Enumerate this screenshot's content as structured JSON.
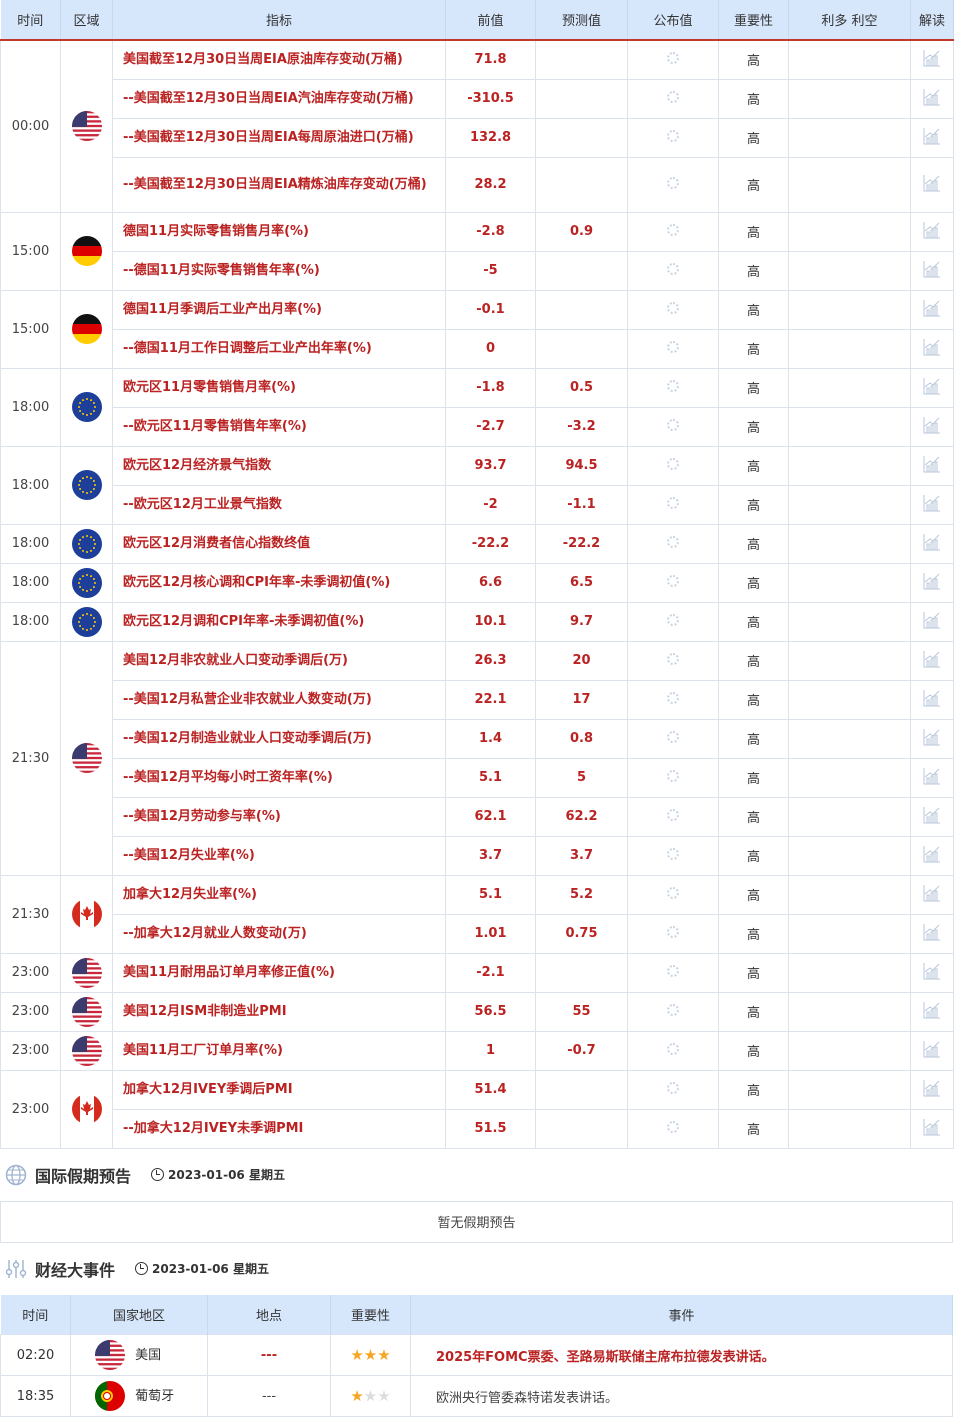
{
  "headers": [
    "时间",
    "区域",
    "指标",
    "前值",
    "预测值",
    "公布值",
    "重要性",
    "利多 利空",
    "解读"
  ],
  "groups": [
    {
      "time": "00:00",
      "flag": "us",
      "rows": [
        [
          "美国截至12月30日当周EIA原油库存变动(万桶)",
          "71.8",
          ""
        ],
        [
          "--美国截至12月30日当周EIA汽油库存变动(万桶)",
          "-310.5",
          ""
        ],
        [
          "--美国截至12月30日当周EIA每周原油进口(万桶)",
          "132.8",
          ""
        ],
        [
          "--美国截至12月30日当周EIA精炼油库存变动(万桶)",
          "28.2",
          ""
        ]
      ]
    },
    {
      "time": "15:00",
      "flag": "de",
      "rows": [
        [
          "德国11月实际零售销售月率(%)",
          "-2.8",
          "0.9"
        ],
        [
          "--德国11月实际零售销售年率(%)",
          "-5",
          ""
        ]
      ]
    },
    {
      "time": "15:00",
      "flag": "de",
      "rows": [
        [
          "德国11月季调后工业产出月率(%)",
          "-0.1",
          ""
        ],
        [
          "--德国11月工作日调整后工业产出年率(%)",
          "0",
          ""
        ]
      ]
    },
    {
      "time": "18:00",
      "flag": "eu",
      "rows": [
        [
          "欧元区11月零售销售月率(%)",
          "-1.8",
          "0.5"
        ],
        [
          "--欧元区11月零售销售年率(%)",
          "-2.7",
          "-3.2"
        ]
      ]
    },
    {
      "time": "18:00",
      "flag": "eu",
      "rows": [
        [
          "欧元区12月经济景气指数",
          "93.7",
          "94.5"
        ],
        [
          "--欧元区12月工业景气指数",
          "-2",
          "-1.1"
        ]
      ]
    },
    {
      "time": "18:00",
      "flag": "eu",
      "rows": [
        [
          "欧元区12月消费者信心指数终值",
          "-22.2",
          "-22.2"
        ]
      ]
    },
    {
      "time": "18:00",
      "flag": "eu",
      "rows": [
        [
          "欧元区12月核心调和CPI年率-未季调初值(%)",
          "6.6",
          "6.5"
        ]
      ]
    },
    {
      "time": "18:00",
      "flag": "eu",
      "rows": [
        [
          "欧元区12月调和CPI年率-未季调初值(%)",
          "10.1",
          "9.7"
        ]
      ]
    },
    {
      "time": "21:30",
      "flag": "us",
      "rows": [
        [
          "美国12月非农就业人口变动季调后(万)",
          "26.3",
          "20"
        ],
        [
          "--美国12月私营企业非农就业人数变动(万)",
          "22.1",
          "17"
        ],
        [
          "--美国12月制造业就业人口变动季调后(万)",
          "1.4",
          "0.8"
        ],
        [
          "--美国12月平均每小时工资年率(%)",
          "5.1",
          "5"
        ],
        [
          "--美国12月劳动参与率(%)",
          "62.1",
          "62.2"
        ],
        [
          "--美国12月失业率(%)",
          "3.7",
          "3.7"
        ]
      ]
    },
    {
      "time": "21:30",
      "flag": "ca",
      "rows": [
        [
          "加拿大12月失业率(%)",
          "5.1",
          "5.2"
        ],
        [
          "--加拿大12月就业人数变动(万)",
          "1.01",
          "0.75"
        ]
      ]
    },
    {
      "time": "23:00",
      "flag": "us",
      "rows": [
        [
          "美国11月耐用品订单月率修正值(%)",
          "-2.1",
          ""
        ]
      ]
    },
    {
      "time": "23:00",
      "flag": "us",
      "rows": [
        [
          "美国12月ISM非制造业PMI",
          "56.5",
          "55"
        ]
      ]
    },
    {
      "time": "23:00",
      "flag": "us",
      "rows": [
        [
          "美国11月工厂订单月率(%)",
          "1",
          "-0.7"
        ]
      ]
    },
    {
      "time": "23:00",
      "flag": "ca",
      "rows": [
        [
          "加拿大12月IVEY季调后PMI",
          "51.4",
          ""
        ],
        [
          "--加拿大12月IVEY未季调PMI",
          "51.5",
          ""
        ]
      ]
    }
  ],
  "importance": "高",
  "holiday": {
    "title": "国际假期预告",
    "date": "2023-01-06 星期五",
    "empty": "暂无假期预告"
  },
  "events": {
    "title": "财经大事件",
    "date": "2023-01-06 星期五",
    "headers": [
      "时间",
      "国家地区",
      "地点",
      "重要性",
      "事件"
    ],
    "rows": [
      {
        "time": "02:20",
        "flag": "us",
        "country": "美国",
        "place": "---",
        "stars": 3,
        "event": "2025年FOMC票委、圣路易斯联储主席布拉德发表讲话。",
        "highlight": true
      },
      {
        "time": "18:35",
        "flag": "pt",
        "country": "葡萄牙",
        "place": "---",
        "stars": 1,
        "event": "欧洲央行管委森特诺发表讲话。",
        "highlight": false
      }
    ]
  },
  "colors": {
    "accent": "#b22222",
    "header_bg": "#d6e6fb",
    "star": "#f5a623"
  }
}
